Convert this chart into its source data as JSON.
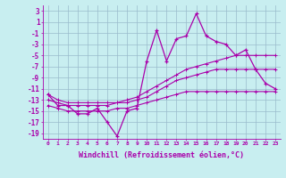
{
  "x": [
    0,
    1,
    2,
    3,
    4,
    5,
    6,
    7,
    8,
    9,
    10,
    11,
    12,
    13,
    14,
    15,
    16,
    17,
    18,
    19,
    20,
    21,
    22,
    23
  ],
  "windchill": [
    -12,
    -14,
    -14,
    -15.5,
    -15.5,
    -14.5,
    -17,
    -19.5,
    -15,
    -14.5,
    -6,
    -0.5,
    -6,
    -2,
    -1.5,
    2.5,
    -1.5,
    -2.5,
    -3,
    -5,
    -4,
    -7.5,
    -10,
    -11
  ],
  "line_top": [
    -12,
    -13,
    -13.5,
    -13.5,
    -13.5,
    -13.5,
    -13.5,
    -13.5,
    -13,
    -12.5,
    -11.5,
    -10.5,
    -9.5,
    -8.5,
    -7.5,
    -7,
    -6.5,
    -6,
    -5.5,
    -5,
    -5,
    -5,
    -5,
    -5
  ],
  "line_mid": [
    -13,
    -13.5,
    -14,
    -14,
    -14,
    -14,
    -14,
    -13.5,
    -13.5,
    -13,
    -12.5,
    -11.5,
    -10.5,
    -9.5,
    -9,
    -8.5,
    -8,
    -7.5,
    -7.5,
    -7.5,
    -7.5,
    -7.5,
    -7.5,
    -7.5
  ],
  "line_bot": [
    -14,
    -14.5,
    -15,
    -15,
    -15,
    -15,
    -15,
    -14.5,
    -14.5,
    -14,
    -13.5,
    -13,
    -12.5,
    -12,
    -11.5,
    -11.5,
    -11.5,
    -11.5,
    -11.5,
    -11.5,
    -11.5,
    -11.5,
    -11.5,
    -11.5
  ],
  "xlim": [
    -0.5,
    23.5
  ],
  "ylim": [
    -20,
    4
  ],
  "yticks": [
    3,
    1,
    -1,
    -3,
    -5,
    -7,
    -9,
    -11,
    -13,
    -15,
    -17,
    -19
  ],
  "xticks": [
    0,
    1,
    2,
    3,
    4,
    5,
    6,
    7,
    8,
    9,
    10,
    11,
    12,
    13,
    14,
    15,
    16,
    17,
    18,
    19,
    20,
    21,
    22,
    23
  ],
  "xlabel": "Windchill (Refroidissement éolien,°C)",
  "line_color": "#aa00aa",
  "bg_color": "#c8eef0",
  "grid_color": "#99bbcc"
}
